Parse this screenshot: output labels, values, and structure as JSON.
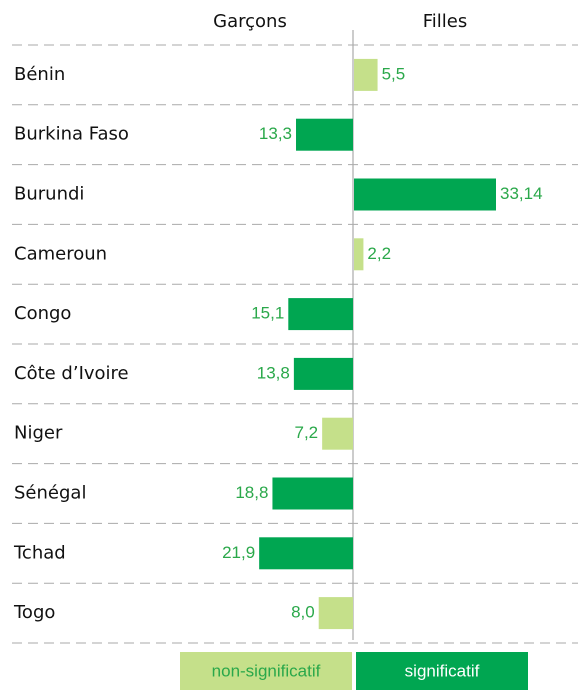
{
  "chart_data": {
    "type": "diverging-bar",
    "categories": [
      "Bénin",
      "Burkina Faso",
      "Burundi",
      "Cameroun",
      "Congo",
      "Côte d’Ivoire",
      "Niger",
      "Sénégal",
      "Tchad",
      "Togo"
    ],
    "series": [
      {
        "name": "Garçons",
        "side": "left",
        "values": [
          null,
          13.3,
          null,
          null,
          15.1,
          13.8,
          7.2,
          18.8,
          21.9,
          8.0
        ],
        "value_labels": [
          null,
          "13,3",
          null,
          null,
          "15,1",
          "13,8",
          "7,2",
          "18,8",
          "21,9",
          "8,0"
        ],
        "colors": [
          null,
          "#00a651",
          null,
          null,
          "#00a651",
          "#00a651",
          "#c5e08a",
          "#00a651",
          "#00a651",
          "#c5e08a"
        ]
      },
      {
        "name": "Filles",
        "side": "right",
        "values": [
          5.5,
          null,
          33.14,
          2.2,
          null,
          null,
          null,
          null,
          null,
          null
        ],
        "value_labels": [
          "5,5",
          null,
          "33,14",
          "2,2",
          null,
          null,
          null,
          null,
          null,
          null
        ],
        "colors": [
          "#c5e08a",
          null,
          "#00a651",
          "#c5e08a",
          null,
          null,
          null,
          null,
          null,
          null
        ]
      }
    ],
    "legend": [
      {
        "name": "non-significatif",
        "color": "#c5e08a",
        "text_color": "#2aa84a"
      },
      {
        "name": "significatif",
        "color": "#00a651",
        "text_color": "#ffffff"
      }
    ]
  }
}
